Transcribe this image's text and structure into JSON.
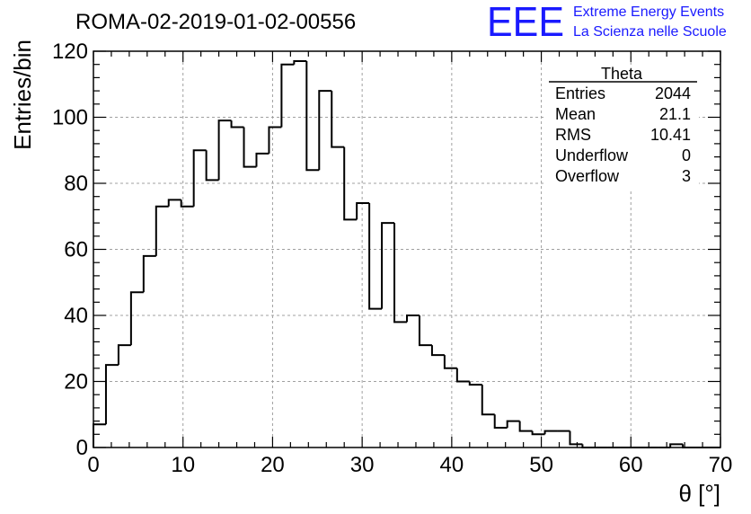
{
  "title": "ROMA-02-2019-01-02-00556",
  "logo": {
    "mark": "EEE",
    "line1": "Extreme Energy Events",
    "line2": "La Scienza nelle Scuole",
    "color": "#1a1aff"
  },
  "stats": {
    "name": "Theta",
    "rows": [
      {
        "label": "Entries",
        "value": "2044"
      },
      {
        "label": "Mean",
        "value": "21.1"
      },
      {
        "label": "RMS",
        "value": "10.41"
      },
      {
        "label": "Underflow",
        "value": "0"
      },
      {
        "label": "Overflow",
        "value": "3"
      }
    ]
  },
  "chart_data": {
    "type": "bar",
    "subtype": "histogram",
    "xlabel": "θ [°]",
    "ylabel": "Entries/bin",
    "xlim": [
      0,
      70
    ],
    "ylim": [
      0,
      120
    ],
    "xticks": [
      0,
      10,
      20,
      30,
      40,
      50,
      60,
      70
    ],
    "yticks": [
      0,
      20,
      40,
      60,
      80,
      100,
      120
    ],
    "grid": true,
    "bin_width": 1.4,
    "bin_edges_start": 0,
    "values": [
      7,
      25,
      31,
      47,
      58,
      73,
      75,
      73,
      90,
      81,
      99,
      97,
      85,
      89,
      97,
      116,
      117,
      84,
      108,
      91,
      69,
      74,
      42,
      68,
      38,
      40,
      31,
      28,
      24,
      20,
      19,
      10,
      6,
      8,
      5,
      4,
      5,
      5,
      1,
      0,
      0,
      0,
      0,
      0,
      0,
      0,
      1,
      0,
      0,
      0
    ],
    "line_color": "#000000",
    "grid_color": "#a0a0a0"
  }
}
